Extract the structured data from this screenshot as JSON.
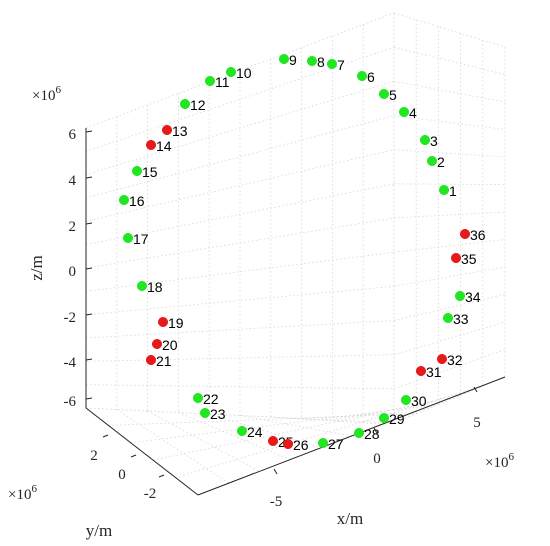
{
  "chart_data": {
    "type": "scatter",
    "projection": "3d",
    "xlabel": "x/m",
    "ylabel": "y/m",
    "zlabel": "z/m",
    "x_ticks": [
      "-5",
      "0",
      "5"
    ],
    "y_ticks": [
      "2",
      "0",
      "-2"
    ],
    "z_ticks": [
      "6",
      "4",
      "2",
      "0",
      "-2",
      "-4",
      "-6"
    ],
    "x_exponent": "×10",
    "x_exponent_power": "6",
    "y_exponent": "×10",
    "y_exponent_power": "6",
    "z_exponent": "×10",
    "z_exponent_power": "6",
    "grid": true,
    "colors": {
      "green": "#22e622",
      "red": "#e61a1a"
    },
    "series": [
      {
        "points": [
          {
            "label": "1",
            "color": "green"
          },
          {
            "label": "2",
            "color": "green"
          },
          {
            "label": "3",
            "color": "green"
          },
          {
            "label": "4",
            "color": "green"
          },
          {
            "label": "5",
            "color": "green"
          },
          {
            "label": "6",
            "color": "green"
          },
          {
            "label": "7",
            "color": "green"
          },
          {
            "label": "8",
            "color": "green"
          },
          {
            "label": "9",
            "color": "green"
          },
          {
            "label": "10",
            "color": "green"
          },
          {
            "label": "11",
            "color": "green"
          },
          {
            "label": "12",
            "color": "green"
          },
          {
            "label": "13",
            "color": "red"
          },
          {
            "label": "14",
            "color": "red"
          },
          {
            "label": "15",
            "color": "green"
          },
          {
            "label": "16",
            "color": "green"
          },
          {
            "label": "17",
            "color": "green"
          },
          {
            "label": "18",
            "color": "green"
          },
          {
            "label": "19",
            "color": "red"
          },
          {
            "label": "20",
            "color": "red"
          },
          {
            "label": "21",
            "color": "red"
          },
          {
            "label": "22",
            "color": "green"
          },
          {
            "label": "23",
            "color": "green"
          },
          {
            "label": "24",
            "color": "green"
          },
          {
            "label": "25",
            "color": "red"
          },
          {
            "label": "26",
            "color": "red"
          },
          {
            "label": "27",
            "color": "green"
          },
          {
            "label": "28",
            "color": "green"
          },
          {
            "label": "29",
            "color": "green"
          },
          {
            "label": "30",
            "color": "green"
          },
          {
            "label": "31",
            "color": "red"
          },
          {
            "label": "32",
            "color": "red"
          },
          {
            "label": "33",
            "color": "green"
          },
          {
            "label": "34",
            "color": "green"
          },
          {
            "label": "35",
            "color": "red"
          },
          {
            "label": "36",
            "color": "red"
          }
        ]
      }
    ]
  }
}
